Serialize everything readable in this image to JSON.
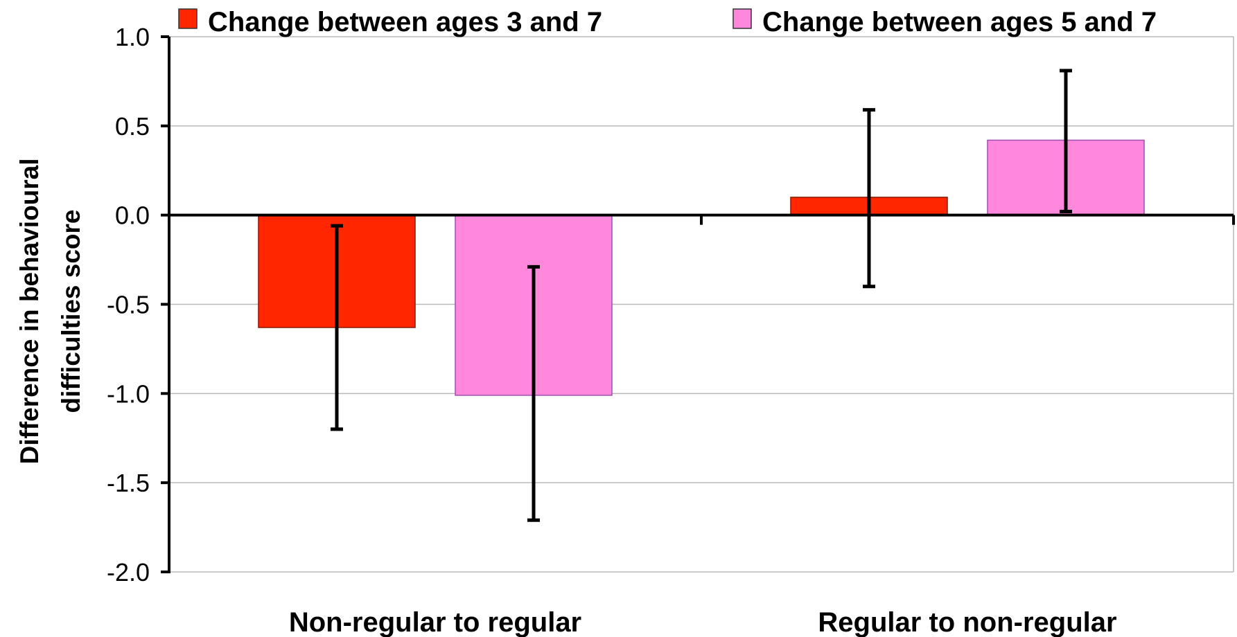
{
  "chart_data": {
    "type": "bar",
    "categories": [
      "Non-regular to regular",
      "Regular to non-regular"
    ],
    "series": [
      {
        "name": "Change between ages 3 and 7",
        "color": "#ff2600",
        "values": [
          -0.63,
          0.1
        ],
        "error_low": [
          -1.2,
          -0.4
        ],
        "error_high": [
          -0.06,
          0.59
        ]
      },
      {
        "name": "Change between ages 5 and 7",
        "color": "#ff88dd",
        "values": [
          -1.01,
          0.42
        ],
        "error_low": [
          -1.71,
          0.02
        ],
        "error_high": [
          -0.29,
          0.81
        ]
      }
    ],
    "ylabel": "Difference in behavioural difficulties score",
    "ylim": [
      -2.0,
      1.0
    ],
    "yticks": [
      "1.0",
      "0.5",
      "0.0",
      "-0.5",
      "-1.0",
      "-1.5",
      "-2.0"
    ],
    "grid": true,
    "legend_position": "top"
  }
}
